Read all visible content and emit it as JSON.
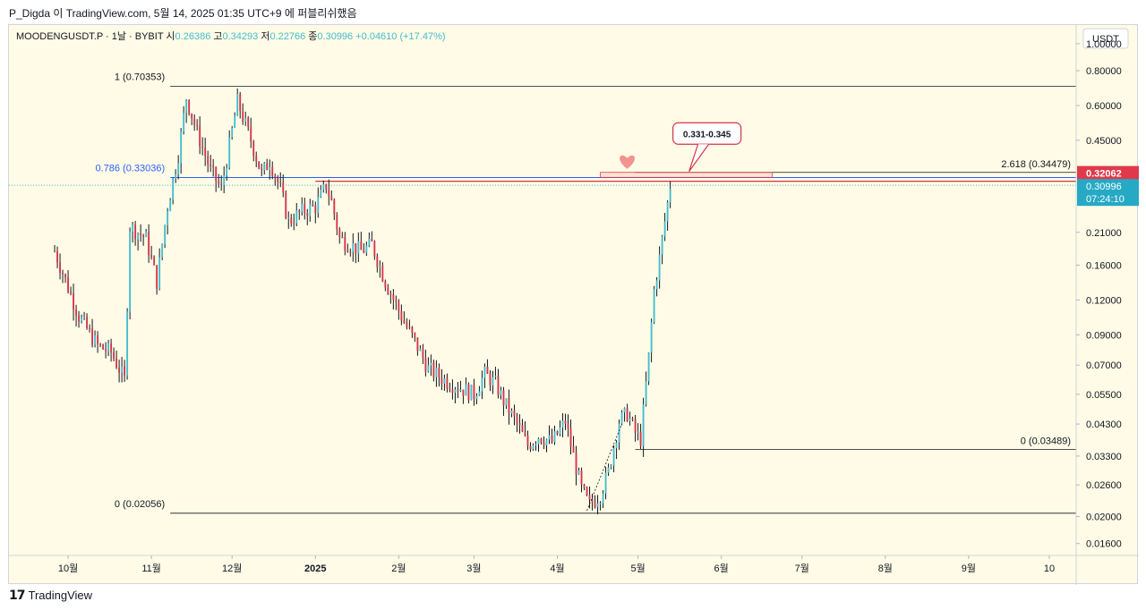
{
  "publisher_line": "P_Digda 이 TradingView.com, 5월 14, 2025 01:35 UTC+9 에 퍼블리쉬했음",
  "footer_brand": "TradingView",
  "footer_logo_text": "𝟭𝟳",
  "colors": {
    "background": "#fffbe6",
    "up": "#42bdd0",
    "down": "#d6334a",
    "wick": "#131722",
    "price_label_current": "#26a9c4",
    "price_label_high": "#e0394b",
    "fib_786": "#2962ff",
    "heart": "#f08080"
  },
  "chart_data": {
    "type": "candlestick",
    "symbol": "MOODENGUSDT.P",
    "legend": {
      "symbol_text": "MOODENGUSDT.P · 1날 · BYBIT",
      "open_label": "시",
      "open_value": "0.26386",
      "high_label": "고",
      "high_value": "0.34293",
      "low_label": "저",
      "low_value": "0.22766",
      "close_label": "종",
      "close_value": "0.30996",
      "change_text": "+0.04610 (+17.47%)"
    },
    "y_axis_unit": "USDT",
    "y_scale": "log",
    "ylim": [
      0.0145,
      1.1
    ],
    "y_ticks": [
      "1.00000",
      "0.80000",
      "0.60000",
      "0.45000",
      "0.21000",
      "0.16000",
      "0.12000",
      "0.09000",
      "0.07000",
      "0.05500",
      "0.04300",
      "0.03300",
      "0.02600",
      "0.02000",
      "0.01600"
    ],
    "x_ticks": [
      "10월",
      "11월",
      "12월",
      "2025",
      "2월",
      "3월",
      "4월",
      "5월",
      "6월",
      "7월",
      "8월",
      "9월",
      "10"
    ],
    "x_tick_dates": [
      "2024-10-01",
      "2024-11-01",
      "2024-12-01",
      "2025-01-01",
      "2025-02-01",
      "2025-03-01",
      "2025-04-01",
      "2025-05-01",
      "2025-06-01",
      "2025-07-01",
      "2025-08-01",
      "2025-09-01",
      "2025-10-01"
    ],
    "xlim": [
      "2024-09-09",
      "2025-10-11"
    ],
    "price_anchors": [
      {
        "date": "2024-09-26",
        "price": 0.18
      },
      {
        "date": "2024-10-05",
        "price": 0.105
      },
      {
        "date": "2024-10-12",
        "price": 0.082
      },
      {
        "date": "2024-10-17",
        "price": 0.078
      },
      {
        "date": "2024-10-22",
        "price": 0.062
      },
      {
        "date": "2024-10-24",
        "price": 0.22
      },
      {
        "date": "2024-10-30",
        "price": 0.2
      },
      {
        "date": "2024-11-03",
        "price": 0.14
      },
      {
        "date": "2024-11-07",
        "price": 0.26
      },
      {
        "date": "2024-11-11",
        "price": 0.4
      },
      {
        "date": "2024-11-14",
        "price": 0.64
      },
      {
        "date": "2024-11-18",
        "price": 0.48
      },
      {
        "date": "2024-11-23",
        "price": 0.35
      },
      {
        "date": "2024-11-27",
        "price": 0.3
      },
      {
        "date": "2024-12-03",
        "price": 0.62
      },
      {
        "date": "2024-12-08",
        "price": 0.45
      },
      {
        "date": "2024-12-12",
        "price": 0.34
      },
      {
        "date": "2024-12-15",
        "price": 0.38
      },
      {
        "date": "2024-12-19",
        "price": 0.3
      },
      {
        "date": "2024-12-22",
        "price": 0.23
      },
      {
        "date": "2024-12-27",
        "price": 0.25
      },
      {
        "date": "2025-01-01",
        "price": 0.26
      },
      {
        "date": "2025-01-05",
        "price": 0.31
      },
      {
        "date": "2025-01-07",
        "price": 0.27
      },
      {
        "date": "2025-01-10",
        "price": 0.2
      },
      {
        "date": "2025-01-18",
        "price": 0.18
      },
      {
        "date": "2025-01-22",
        "price": 0.19
      },
      {
        "date": "2025-01-27",
        "price": 0.14
      },
      {
        "date": "2025-02-03",
        "price": 0.1
      },
      {
        "date": "2025-02-07",
        "price": 0.085
      },
      {
        "date": "2025-02-12",
        "price": 0.068
      },
      {
        "date": "2025-02-18",
        "price": 0.062
      },
      {
        "date": "2025-02-24",
        "price": 0.058
      },
      {
        "date": "2025-03-01",
        "price": 0.055
      },
      {
        "date": "2025-03-05",
        "price": 0.065
      },
      {
        "date": "2025-03-09",
        "price": 0.06
      },
      {
        "date": "2025-03-12",
        "price": 0.052
      },
      {
        "date": "2025-03-17",
        "price": 0.043
      },
      {
        "date": "2025-03-21",
        "price": 0.036
      },
      {
        "date": "2025-03-25",
        "price": 0.039
      },
      {
        "date": "2025-03-30",
        "price": 0.037
      },
      {
        "date": "2025-04-04",
        "price": 0.044
      },
      {
        "date": "2025-04-07",
        "price": 0.033
      },
      {
        "date": "2025-04-10",
        "price": 0.025
      },
      {
        "date": "2025-04-13",
        "price": 0.022
      },
      {
        "date": "2025-04-17",
        "price": 0.024
      },
      {
        "date": "2025-04-20",
        "price": 0.029
      },
      {
        "date": "2025-04-24",
        "price": 0.044
      },
      {
        "date": "2025-04-27",
        "price": 0.047
      },
      {
        "date": "2025-04-30",
        "price": 0.04
      },
      {
        "date": "2025-05-02",
        "price": 0.038
      },
      {
        "date": "2025-05-05",
        "price": 0.075
      },
      {
        "date": "2025-05-07",
        "price": 0.13
      },
      {
        "date": "2025-05-09",
        "price": 0.17
      },
      {
        "date": "2025-05-11",
        "price": 0.23
      },
      {
        "date": "2025-05-13",
        "price": 0.30996
      }
    ],
    "horizontal_levels": [
      {
        "label": "1 (0.70353)",
        "price": 0.70353,
        "from": "2024-11-08",
        "to": "2025-10-11",
        "label_pos": "left"
      },
      {
        "label": "0.786 (0.33036)",
        "price": 0.33036,
        "from": "2024-11-08",
        "to": "2025-10-11",
        "label_pos": "left",
        "style": "fib786"
      },
      {
        "label": "0 (0.02056)",
        "price": 0.02056,
        "from": "2024-11-08",
        "to": "2025-10-11",
        "label_pos": "left"
      },
      {
        "label": "2.618 (0.34479)",
        "price": 0.34479,
        "from": "2025-04-30",
        "to": "2025-10-11",
        "label_pos": "right"
      },
      {
        "label": "0 (0.03489)",
        "price": 0.03489,
        "from": "2025-04-30",
        "to": "2025-10-11",
        "label_pos": "right"
      }
    ],
    "highlight_zone": {
      "from": "2025-04-17",
      "to": "2025-06-20",
      "low": 0.331,
      "high": 0.345
    },
    "callout_text": "0.331-0.345",
    "price_labels": [
      {
        "value": "0.32062",
        "price": 0.32062,
        "kind": "high"
      },
      {
        "value": "0.30996",
        "price": 0.30996,
        "kind": "current",
        "countdown": "07:24:10"
      }
    ]
  }
}
